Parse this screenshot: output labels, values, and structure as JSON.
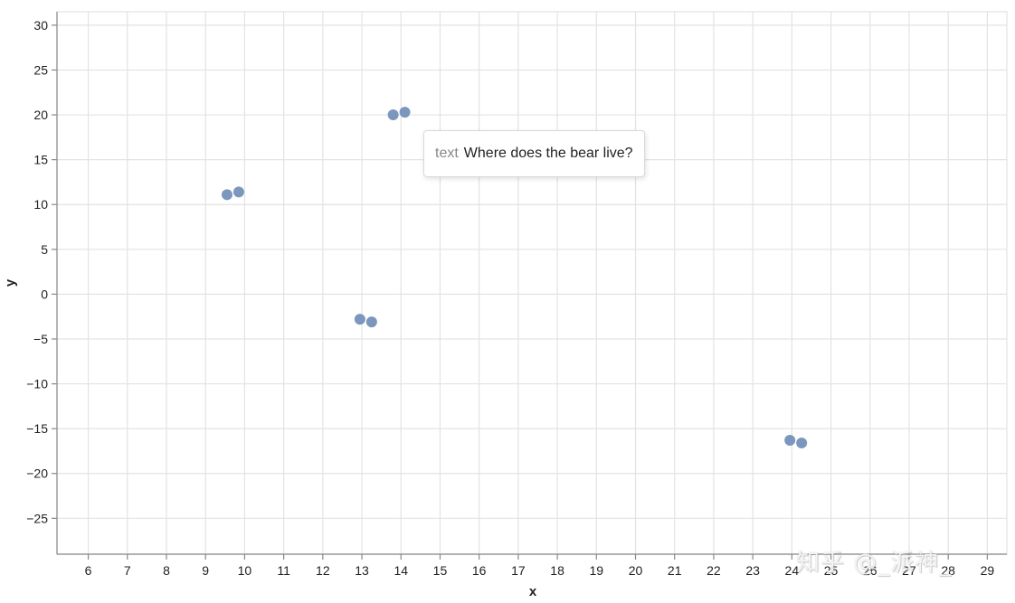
{
  "chart_data": {
    "type": "scatter",
    "xlabel": "x",
    "ylabel": "y",
    "xlim": [
      5.2,
      29.5
    ],
    "ylim": [
      -29,
      31.5
    ],
    "x_ticks": [
      6,
      7,
      8,
      9,
      10,
      11,
      12,
      13,
      14,
      15,
      16,
      17,
      18,
      19,
      20,
      21,
      22,
      23,
      24,
      25,
      26,
      27,
      28,
      29
    ],
    "y_ticks": [
      30,
      25,
      20,
      15,
      10,
      5,
      0,
      -5,
      -10,
      -15,
      -20,
      -25
    ],
    "grid": true,
    "point_color": "#7b97bd",
    "points": [
      {
        "x": 9.55,
        "y": 11.1
      },
      {
        "x": 9.85,
        "y": 11.4
      },
      {
        "x": 13.8,
        "y": 20.0
      },
      {
        "x": 14.1,
        "y": 20.3
      },
      {
        "x": 12.95,
        "y": -2.8
      },
      {
        "x": 13.25,
        "y": -3.1
      },
      {
        "x": 23.95,
        "y": -16.3
      },
      {
        "x": 24.25,
        "y": -16.6
      }
    ]
  },
  "tooltip": {
    "key": "text",
    "value": "Where does the bear live?"
  },
  "watermark": "知乎 @_派神_"
}
